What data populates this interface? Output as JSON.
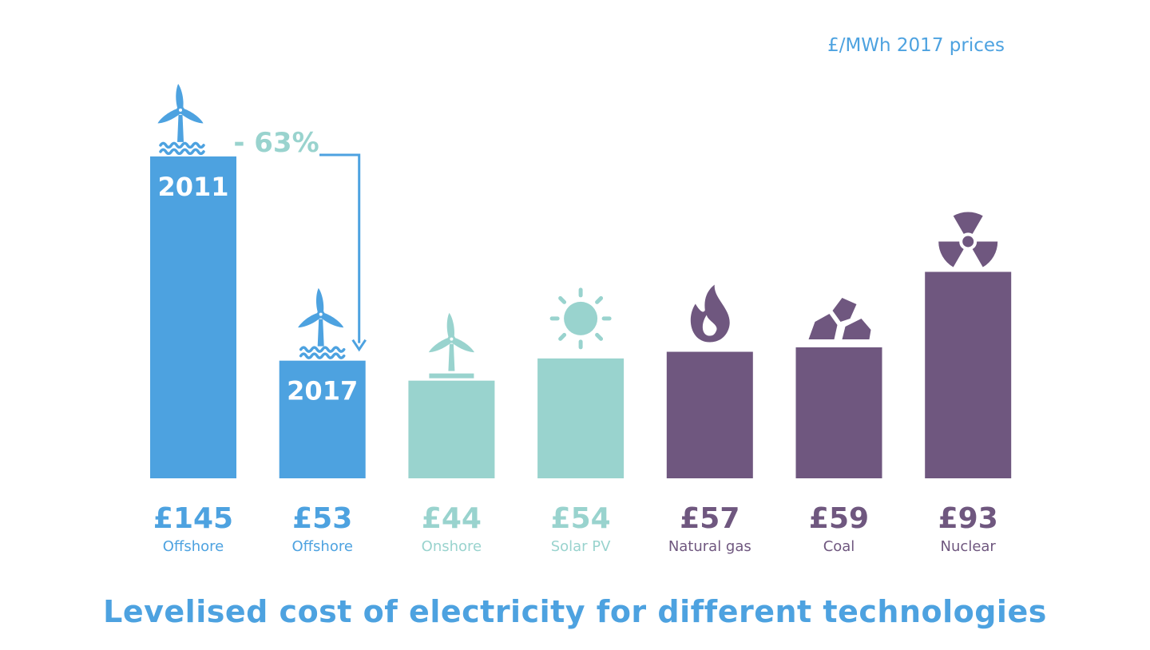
{
  "unit_label": "£/MWh 2017 prices",
  "title": "Levelised cost of electricity for different technologies",
  "colors": {
    "offshore": "#4da2e0",
    "renewable": "#99d3ce",
    "fossil": "#6f577f",
    "year_label": "#ffffff",
    "unit_label": "#4da2e0",
    "title": "#4da2e0",
    "arrow": "#4da2e0",
    "change_label": "#99d3ce"
  },
  "change_annotation": {
    "text": "- 63%",
    "from": "Offshore 2011",
    "to": "Offshore 2017"
  },
  "chart_data": {
    "type": "bar",
    "title": "Levelised cost of electricity for different technologies",
    "ylabel": "£/MWh 2017 prices",
    "ylim": [
      0,
      150
    ],
    "grid": false,
    "legend": "none",
    "bars": [
      {
        "category": "Offshore",
        "year": "2011",
        "value": 145,
        "label": "£145",
        "color_key": "offshore",
        "icon": "offshore-wind-turbine-icon"
      },
      {
        "category": "Offshore",
        "year": "2017",
        "value": 53,
        "label": "£53",
        "color_key": "offshore",
        "icon": "offshore-wind-turbine-icon"
      },
      {
        "category": "Onshore",
        "year": "",
        "value": 44,
        "label": "£44",
        "color_key": "renewable",
        "icon": "onshore-wind-turbine-icon"
      },
      {
        "category": "Solar PV",
        "year": "",
        "value": 54,
        "label": "£54",
        "color_key": "renewable",
        "icon": "sun-icon"
      },
      {
        "category": "Natural gas",
        "year": "",
        "value": 57,
        "label": "£57",
        "color_key": "fossil",
        "icon": "flame-icon"
      },
      {
        "category": "Coal",
        "year": "",
        "value": 59,
        "label": "£59",
        "color_key": "fossil",
        "icon": "coal-icon"
      },
      {
        "category": "Nuclear",
        "year": "",
        "value": 93,
        "label": "£93",
        "color_key": "fossil",
        "icon": "radiation-icon"
      }
    ]
  }
}
